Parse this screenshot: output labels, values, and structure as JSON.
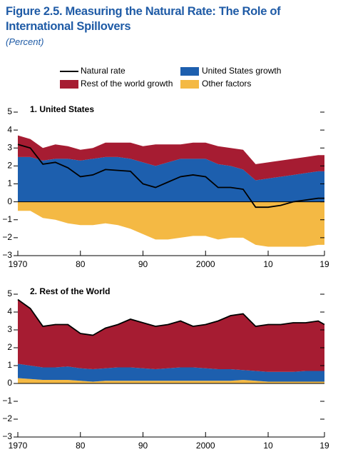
{
  "title": "Figure 2.5. Measuring the Natural Rate: The Role of International Spillovers",
  "subtitle": "(Percent)",
  "chart_data": [
    {
      "type": "area",
      "title": "1. United States",
      "x": [
        1970,
        1972,
        1974,
        1976,
        1978,
        1980,
        1982,
        1984,
        1986,
        1988,
        1990,
        1992,
        1994,
        1996,
        1998,
        2000,
        2002,
        2004,
        2006,
        2008,
        2010,
        2012,
        2014,
        2016,
        2018,
        2019
      ],
      "series": [
        {
          "name": "United States growth",
          "color": "#1d5fae",
          "values": [
            2.5,
            2.5,
            2.3,
            2.4,
            2.4,
            2.3,
            2.4,
            2.5,
            2.5,
            2.4,
            2.2,
            2.0,
            2.2,
            2.4,
            2.4,
            2.4,
            2.1,
            2.0,
            1.8,
            1.2,
            1.3,
            1.4,
            1.5,
            1.6,
            1.7,
            1.7
          ]
        },
        {
          "name": "Rest of the world growth",
          "color": "#a61c32",
          "values": [
            1.2,
            1.0,
            0.7,
            0.8,
            0.7,
            0.6,
            0.6,
            0.8,
            0.8,
            0.9,
            0.9,
            1.2,
            1.0,
            0.8,
            0.9,
            0.9,
            1.0,
            1.0,
            1.1,
            0.9,
            0.9,
            0.9,
            0.9,
            0.9,
            0.9,
            0.9
          ]
        },
        {
          "name": "Other factors",
          "color": "#f4b944",
          "values": [
            -0.5,
            -0.5,
            -0.9,
            -1.0,
            -1.2,
            -1.3,
            -1.3,
            -1.2,
            -1.3,
            -1.5,
            -1.8,
            -2.1,
            -2.1,
            -2.0,
            -1.9,
            -1.9,
            -2.1,
            -2.0,
            -2.0,
            -2.4,
            -2.5,
            -2.5,
            -2.5,
            -2.5,
            -2.4,
            -2.4
          ]
        }
      ],
      "line": {
        "name": "Natural rate",
        "color": "#000000",
        "values": [
          3.2,
          3.0,
          2.1,
          2.2,
          1.9,
          1.4,
          1.5,
          1.8,
          1.75,
          1.7,
          1.0,
          0.8,
          1.1,
          1.4,
          1.5,
          1.4,
          0.8,
          0.8,
          0.7,
          -0.3,
          -0.3,
          -0.2,
          0.0,
          0.1,
          0.2,
          0.2
        ]
      },
      "xlim": [
        1970,
        2019
      ],
      "xticks": [
        1970,
        {
          "value": 1980,
          "label": "80"
        },
        {
          "value": 1990,
          "label": "90"
        },
        2000,
        {
          "value": 2010,
          "label": "10"
        },
        {
          "value": 2019,
          "label": "19"
        }
      ],
      "ylim": [
        -3,
        5
      ],
      "yticks": [
        {
          "value": -3,
          "label": "−3"
        },
        {
          "value": -2,
          "label": "−2"
        },
        {
          "value": -1,
          "label": "−1"
        },
        0,
        1,
        2,
        3,
        4,
        5
      ]
    },
    {
      "type": "area",
      "title": "2. Rest of the World",
      "x": [
        1970,
        1972,
        1974,
        1976,
        1978,
        1980,
        1982,
        1984,
        1986,
        1988,
        1990,
        1992,
        1994,
        1996,
        1998,
        2000,
        2002,
        2004,
        2006,
        2008,
        2010,
        2012,
        2014,
        2016,
        2018,
        2019
      ],
      "series": [
        {
          "color": "#f4b944",
          "values": [
            0.3,
            0.25,
            0.2,
            0.2,
            0.2,
            0.15,
            0.1,
            0.15,
            0.15,
            0.15,
            0.15,
            0.15,
            0.15,
            0.15,
            0.15,
            0.15,
            0.15,
            0.15,
            0.2,
            0.15,
            0.1,
            0.1,
            0.1,
            0.1,
            0.1,
            0.1
          ]
        },
        {
          "color": "#1d5fae",
          "values": [
            0.8,
            0.75,
            0.7,
            0.7,
            0.75,
            0.7,
            0.7,
            0.7,
            0.75,
            0.75,
            0.7,
            0.65,
            0.7,
            0.75,
            0.75,
            0.7,
            0.65,
            0.65,
            0.55,
            0.55,
            0.55,
            0.55,
            0.55,
            0.6,
            0.6,
            0.6
          ]
        },
        {
          "color": "#a61c32",
          "values": [
            3.6,
            3.2,
            2.3,
            2.4,
            2.35,
            1.95,
            1.9,
            2.25,
            2.4,
            2.7,
            2.55,
            2.4,
            2.45,
            2.6,
            2.3,
            2.45,
            2.7,
            3.0,
            3.15,
            2.5,
            2.65,
            2.65,
            2.75,
            2.7,
            2.8,
            2.6
          ]
        }
      ],
      "line": {
        "color": "#000000",
        "values": [
          4.7,
          4.2,
          3.2,
          3.3,
          3.3,
          2.8,
          2.7,
          3.1,
          3.3,
          3.6,
          3.4,
          3.2,
          3.3,
          3.5,
          3.2,
          3.3,
          3.5,
          3.8,
          3.9,
          3.2,
          3.3,
          3.3,
          3.4,
          3.4,
          3.5,
          3.3
        ]
      },
      "xlim": [
        1970,
        2019
      ],
      "xticks": [
        1970,
        {
          "value": 1980,
          "label": "80"
        },
        {
          "value": 1990,
          "label": "90"
        },
        2000,
        {
          "value": 2010,
          "label": "10"
        },
        {
          "value": 2019,
          "label": "19"
        }
      ],
      "ylim": [
        -3,
        5
      ],
      "yticks": [
        {
          "value": -3,
          "label": "−3"
        },
        {
          "value": -2,
          "label": "−2"
        },
        {
          "value": -1,
          "label": "−1"
        },
        0,
        1,
        2,
        3,
        4,
        5
      ]
    }
  ]
}
